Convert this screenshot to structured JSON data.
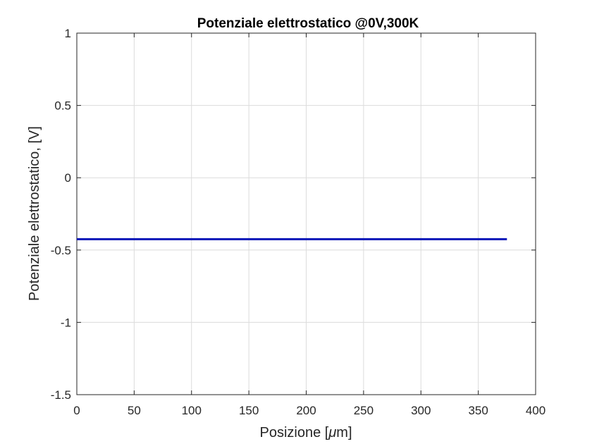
{
  "chart_data": {
    "type": "line",
    "title": "Potenziale elettrostatico @0V,300K",
    "xlabel": "Posizione [",
    "xlabel_mu": "μ",
    "xlabel_unit": "m]",
    "ylabel": "Potenziale elettrostatico, [V]",
    "xlim": [
      0,
      400
    ],
    "ylim": [
      -1.5,
      1
    ],
    "xticks": [
      0,
      50,
      100,
      150,
      200,
      250,
      300,
      350,
      400
    ],
    "xtick_labels": [
      "0",
      "50",
      "100",
      "150",
      "200",
      "250",
      "300",
      "350",
      "400"
    ],
    "yticks": [
      -1.5,
      -1,
      -0.5,
      0,
      0.5,
      1
    ],
    "ytick_labels": [
      "-1.5",
      "-1",
      "-0.5",
      "0",
      "0.5",
      "1"
    ],
    "grid": true,
    "series": [
      {
        "color": "#0b17b8",
        "x": [
          0,
          50,
          100,
          150,
          200,
          250,
          300,
          350,
          375
        ],
        "y": [
          -0.425,
          -0.425,
          -0.425,
          -0.425,
          -0.425,
          -0.425,
          -0.425,
          -0.425,
          -0.425
        ]
      }
    ]
  }
}
